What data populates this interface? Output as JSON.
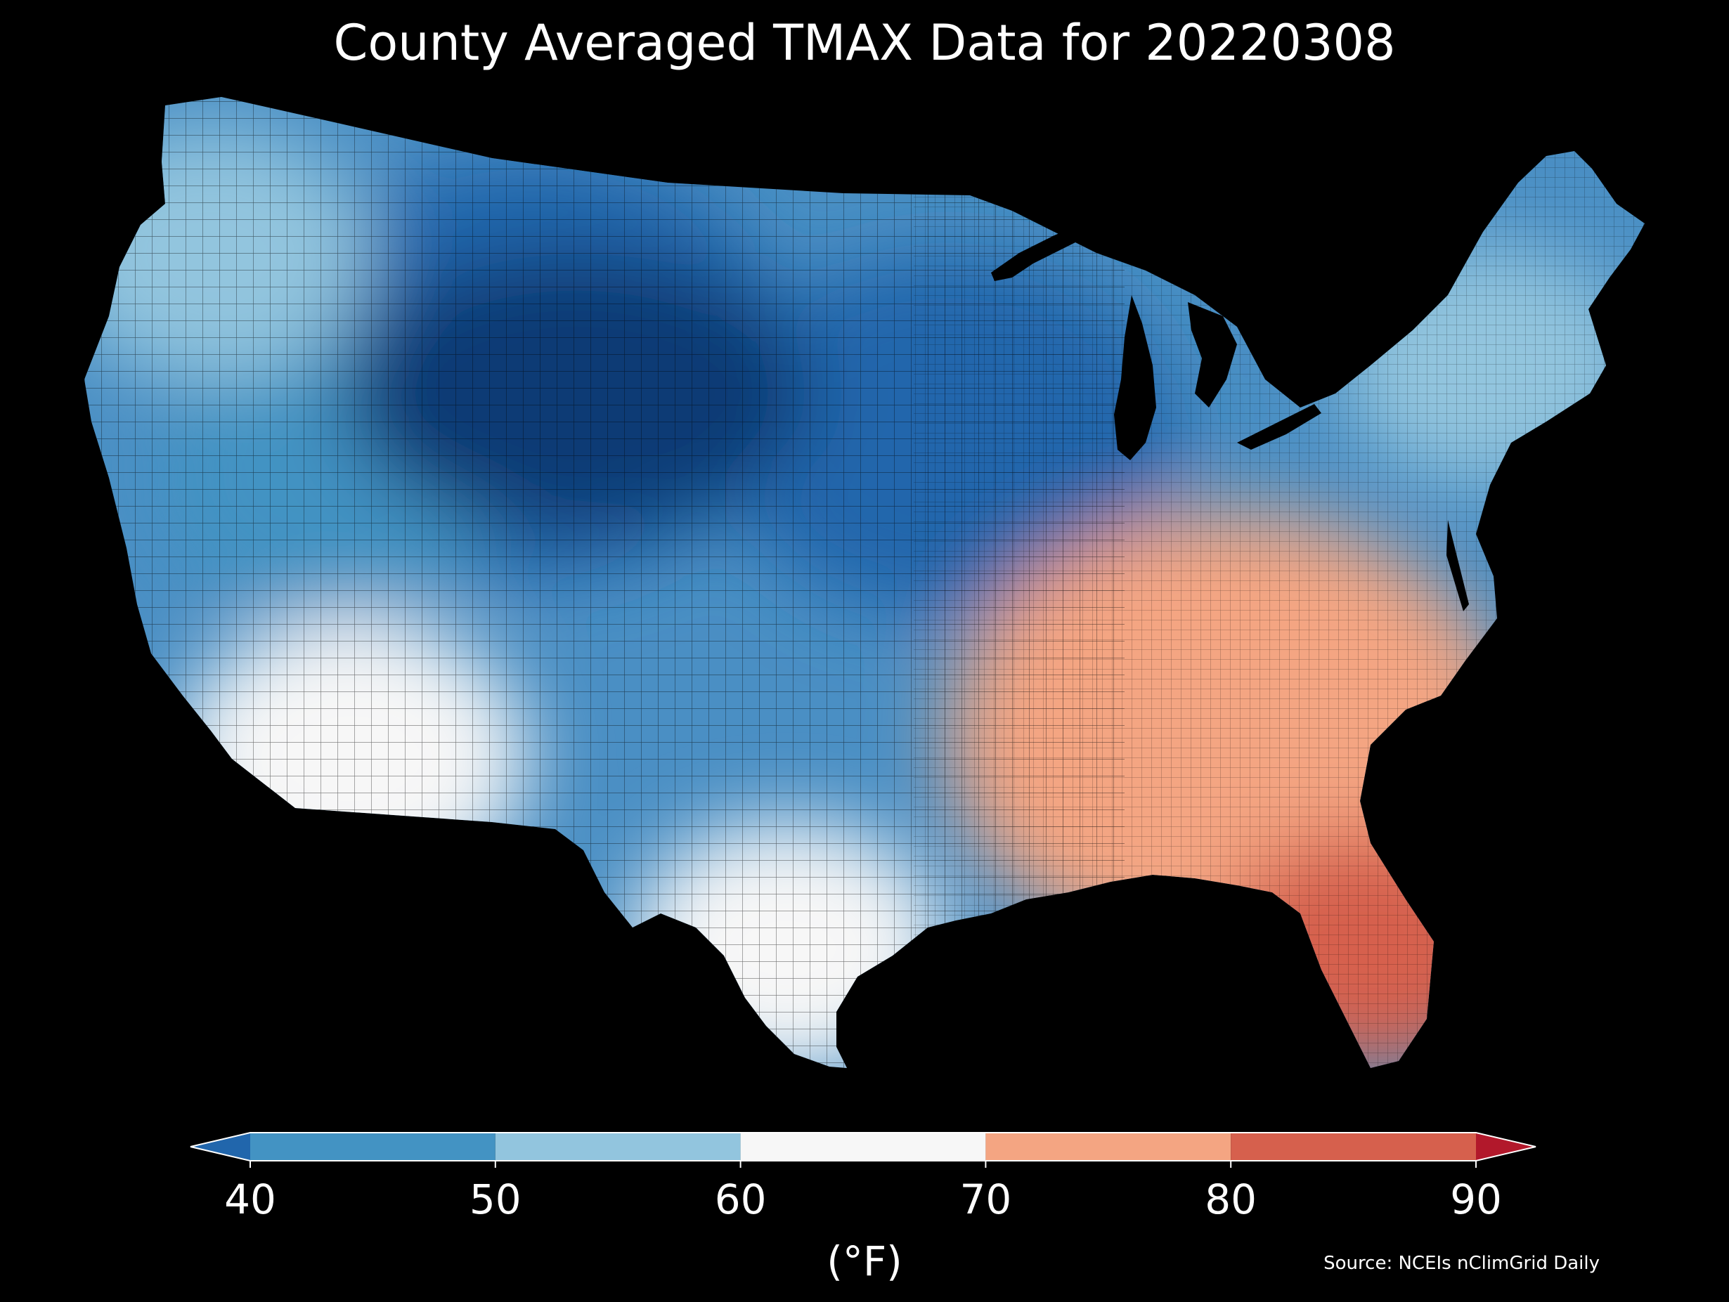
{
  "title": "County Averaged TMAX Data for 20220308",
  "source": "Source: NCEIs nClimGrid Daily",
  "map": {
    "region": "Contiguous United States (county level)",
    "variable": "TMAX",
    "background_color": "#000000",
    "regional_temperature_pattern": [
      {
        "region": "Northern Rockies / High Plains",
        "tmax_f": 30
      },
      {
        "region": "Upper Midwest",
        "tmax_f": 33
      },
      {
        "region": "Great Basin",
        "tmax_f": 45
      },
      {
        "region": "Pacific Northwest",
        "tmax_f": 52
      },
      {
        "region": "Southern California / Desert Southwest",
        "tmax_f": 64
      },
      {
        "region": "Northeast",
        "tmax_f": 55
      },
      {
        "region": "Texas Coast",
        "tmax_f": 68
      },
      {
        "region": "Southeast",
        "tmax_f": 76
      },
      {
        "region": "Florida Peninsula",
        "tmax_f": 84
      }
    ]
  },
  "colorbar": {
    "label": "(°F)",
    "ticks": [
      "40",
      "50",
      "60",
      "70",
      "80",
      "90"
    ],
    "range": [
      40,
      90
    ],
    "extend": "both",
    "bins": [
      {
        "from": null,
        "to": 40,
        "color": "#2166ac"
      },
      {
        "from": 40,
        "to": 50,
        "color": "#4393c3"
      },
      {
        "from": 50,
        "to": 60,
        "color": "#92c5de"
      },
      {
        "from": 60,
        "to": 70,
        "color": "#f7f7f7"
      },
      {
        "from": 70,
        "to": 80,
        "color": "#f4a582"
      },
      {
        "from": 80,
        "to": 90,
        "color": "#d6604d"
      },
      {
        "from": 90,
        "to": null,
        "color": "#b2182b"
      }
    ]
  }
}
